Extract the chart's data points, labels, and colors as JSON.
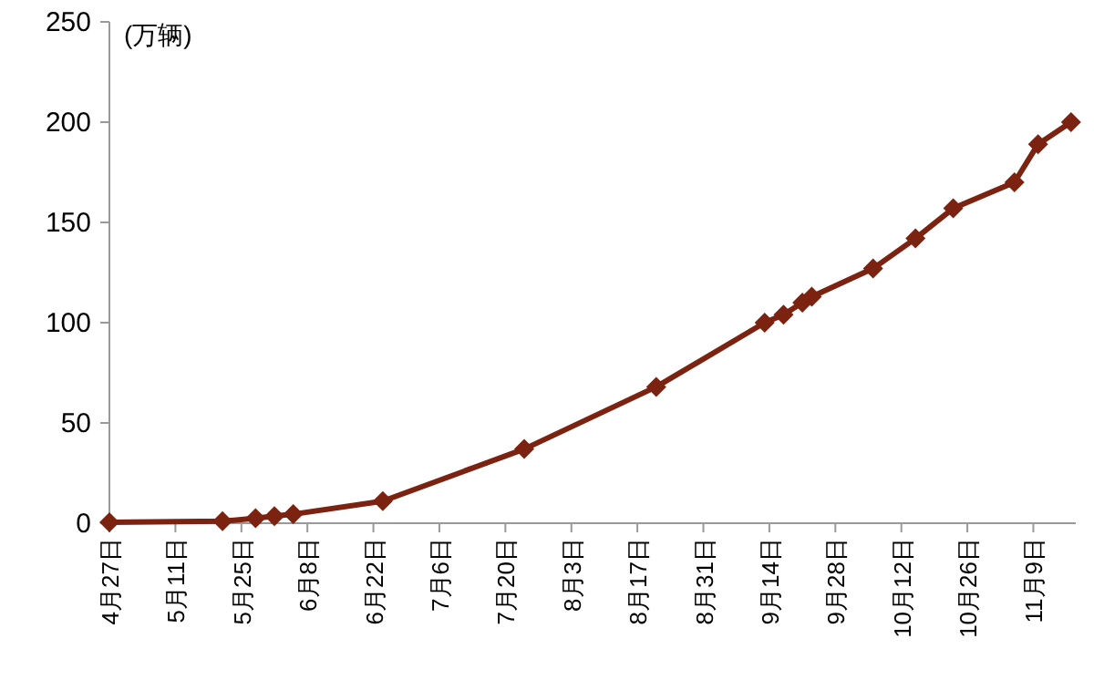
{
  "chart_data": {
    "type": "line",
    "ylabel": "(万辆)",
    "x": [
      "--04-27",
      "--05-21",
      "--05-28",
      "--06-01",
      "--06-05",
      "--06-24",
      "--07-24",
      "--08-21",
      "--09-13",
      "--09-17",
      "--09-21",
      "--09-23",
      "--10-06",
      "--10-15",
      "--10-23",
      "--11-05",
      "--11-10",
      "--11-17"
    ],
    "series": [
      {
        "color": "#7b2210",
        "values": [
          0.5,
          1,
          2.5,
          3.5,
          4.5,
          11,
          37,
          68,
          100,
          104,
          110,
          113,
          127,
          142,
          157,
          170,
          189,
          200
        ]
      }
    ],
    "xlim": [
      "--04-27",
      "--11-18"
    ],
    "xticks": [
      {
        "value": "--04-27",
        "label": "4月27日"
      },
      {
        "value": "--05-11",
        "label": "5月11日"
      },
      {
        "value": "--05-25",
        "label": "5月25日"
      },
      {
        "value": "--06-08",
        "label": "6月8日"
      },
      {
        "value": "--06-22",
        "label": "6月22日"
      },
      {
        "value": "--07-06",
        "label": "7月6日"
      },
      {
        "value": "--07-20",
        "label": "7月20日"
      },
      {
        "value": "--08-03",
        "label": "8月3日"
      },
      {
        "value": "--08-17",
        "label": "8月17日"
      },
      {
        "value": "--08-31",
        "label": "8月31日"
      },
      {
        "value": "--09-14",
        "label": "9月14日"
      },
      {
        "value": "--09-28",
        "label": "9月28日"
      },
      {
        "value": "--10-12",
        "label": "10月12日"
      },
      {
        "value": "--10-26",
        "label": "10月26日"
      },
      {
        "value": "--11-09",
        "label": "11月9日"
      }
    ],
    "ylim": [
      0,
      250
    ],
    "yticks": [
      0,
      50,
      100,
      150,
      200,
      250
    ],
    "marker": "diamond",
    "line_style": "solid"
  }
}
